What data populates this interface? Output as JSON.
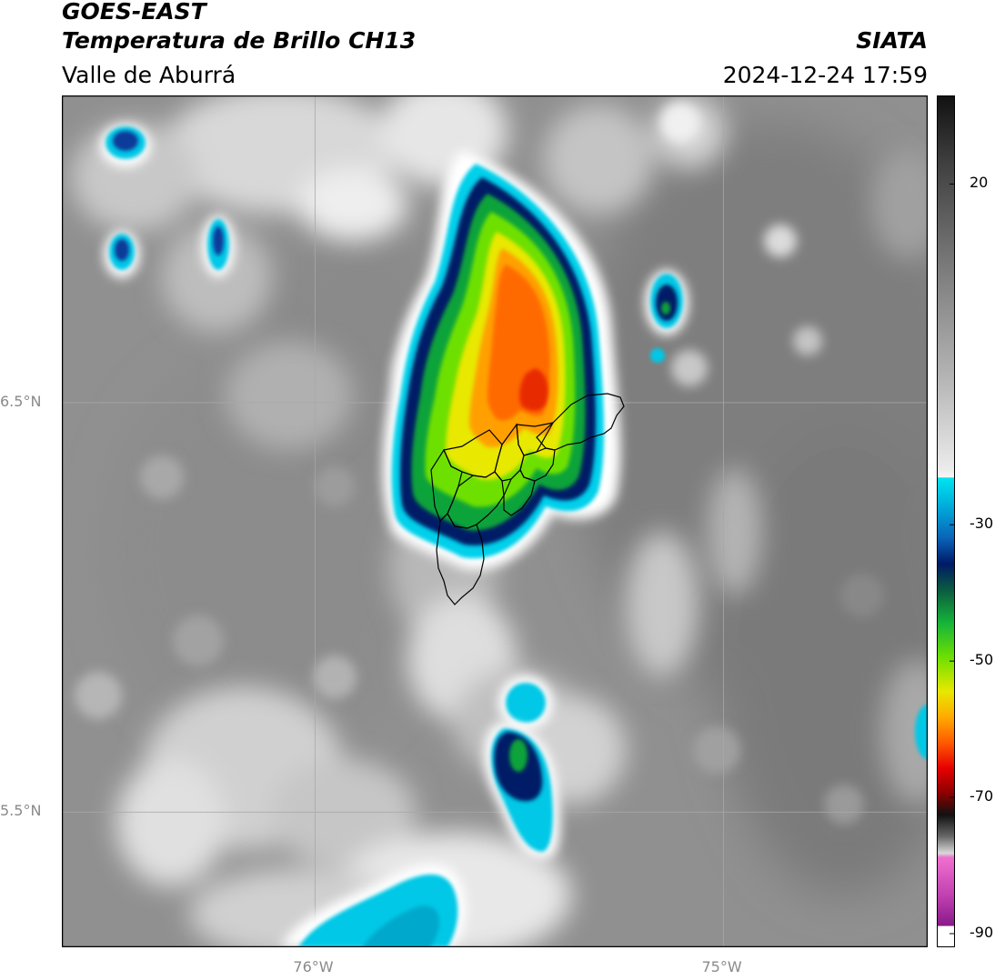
{
  "header": {
    "satellite": "GOES-EAST",
    "product": "Temperatura de Brillo CH13",
    "organization": "SIATA",
    "region": "Valle de Aburrá",
    "timestamp": "2024-12-24 17:59"
  },
  "axes": {
    "lat_labels": [
      {
        "value": 6.5,
        "label": "6.5°N"
      },
      {
        "value": 5.5,
        "label": "5.5°N"
      }
    ],
    "lon_labels": [
      {
        "value": -76.0,
        "label": "76°W"
      },
      {
        "value": -75.0,
        "label": "75°W"
      }
    ],
    "extent": {
      "lon_min": -76.62,
      "lon_max": -74.5,
      "lat_min": 5.17,
      "lat_max": 7.25
    }
  },
  "colorbar": {
    "range": [
      -92,
      33
    ],
    "tick_labels": [
      {
        "value": 20,
        "label": "20"
      },
      {
        "value": -30,
        "label": "-30"
      },
      {
        "value": -50,
        "label": "-50"
      },
      {
        "value": -70,
        "label": "-70"
      },
      {
        "value": -90,
        "label": "-90"
      }
    ],
    "colors": {
      "warm_dark": "#111111",
      "warm_light": "#f2f2f2",
      "cyan": "#00d8ec",
      "blue": "#0a3a9a",
      "navy": "#001a66",
      "green": "#16b53a",
      "yellow": "#e8e800",
      "orange": "#ff8c00",
      "red": "#e60000",
      "magenta": "#e050c0",
      "purple": "#8a1a8a"
    }
  }
}
